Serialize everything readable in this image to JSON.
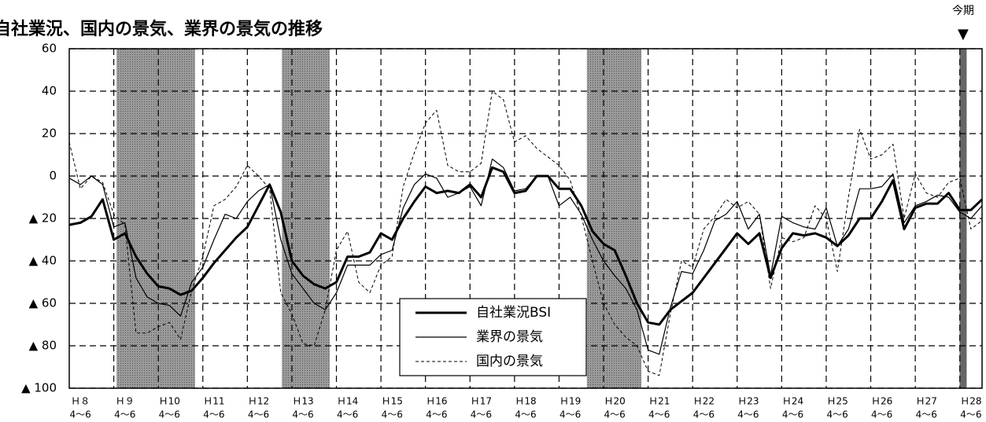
{
  "chart_data": {
    "type": "line",
    "title": "自社業況、国内の景気、業界の景気の推移",
    "xlim": [
      0,
      82
    ],
    "xticks": [
      {
        "value": 1,
        "label": "Ｈ８"
      },
      {
        "value": 5,
        "label": "Ｈ９"
      },
      {
        "value": 9,
        "label": "Ｈ10"
      },
      {
        "value": 13,
        "label": "Ｈ11"
      },
      {
        "value": 17,
        "label": "Ｈ12"
      },
      {
        "value": 21,
        "label": "Ｈ13"
      },
      {
        "value": 25,
        "label": "Ｈ14"
      },
      {
        "value": 29,
        "label": "Ｈ15"
      },
      {
        "value": 33,
        "label": "Ｈ16"
      },
      {
        "value": 37,
        "label": "Ｈ17"
      },
      {
        "value": 41,
        "label": "Ｈ18"
      },
      {
        "value": 45,
        "label": "Ｈ19"
      },
      {
        "value": 49,
        "label": "Ｈ20"
      },
      {
        "value": 53,
        "label": "Ｈ21"
      },
      {
        "value": 57,
        "label": "Ｈ22"
      },
      {
        "value": 61,
        "label": "Ｈ23"
      },
      {
        "value": 65,
        "label": "Ｈ24"
      },
      {
        "value": 69,
        "label": "Ｈ25"
      },
      {
        "value": 73,
        "label": "Ｈ26"
      },
      {
        "value": 77,
        "label": "Ｈ27"
      },
      {
        "value": 81,
        "label": "Ｈ28"
      }
    ],
    "xtick_period": "4～6",
    "x_grid": [
      4,
      8,
      12,
      16,
      20,
      24,
      28,
      32,
      36,
      40,
      44,
      48,
      52,
      56,
      60,
      64,
      68,
      72,
      76,
      80
    ],
    "ylim": [
      -100,
      60
    ],
    "yticks": [
      60,
      40,
      20,
      0,
      {
        "value": -20,
        "label": "▲ 20"
      },
      {
        "value": -40,
        "label": "▲ 40"
      },
      {
        "value": -60,
        "label": "▲ 60"
      },
      {
        "value": -80,
        "label": "▲ 80"
      },
      {
        "value": -100,
        "label": "▲ 100"
      }
    ],
    "grid": true,
    "shaded_ranges": [
      [
        4.25,
        11.3
      ],
      [
        19.1,
        23.4
      ],
      [
        46.5,
        51.4
      ]
    ],
    "shade_color": "#9a9a9a",
    "current_period": {
      "label": "今期",
      "marker": "▼",
      "x": 80.3,
      "color": "#666666"
    },
    "legend": "lower center",
    "series": [
      {
        "name": "自社業況BSI",
        "color": "#000000",
        "width": 3,
        "dash": "none",
        "values": [
          -23,
          -22,
          -19,
          -11,
          -30,
          -27,
          -38,
          -46,
          -52,
          -53,
          -56,
          -54,
          -48,
          -41,
          -35,
          -29,
          -24,
          -14,
          -4,
          -17,
          -40,
          -47,
          -51,
          -53,
          -50,
          -38,
          -38,
          -36,
          -27,
          -30,
          -20,
          -12,
          -5,
          -8,
          -7,
          -8,
          -4,
          -10,
          4,
          2,
          -8,
          -7,
          0,
          0,
          -6,
          -6,
          -14,
          -26,
          -32,
          -35,
          -47,
          -60,
          -69,
          -70,
          -63,
          -59,
          -55,
          -48,
          -41,
          -34,
          -27,
          -32,
          -27,
          -48,
          -34,
          -27,
          -28,
          -27,
          -29,
          -33,
          -28,
          -20,
          -20,
          -12,
          -2,
          -25,
          -15,
          -13,
          -13,
          -8,
          -16,
          -16,
          -11
        ]
      },
      {
        "name": "業界の景気",
        "color": "#000000",
        "width": 1.2,
        "dash": "none",
        "values": [
          -1,
          -4,
          0,
          -4,
          -24,
          -22,
          -48,
          -57,
          -60,
          -61,
          -66,
          -50,
          -43,
          -30,
          -18,
          -20,
          -12,
          -7,
          -4,
          -30,
          -46,
          -53,
          -60,
          -63,
          -55,
          -42,
          -42,
          -42,
          -37,
          -35,
          -15,
          -4,
          1,
          -1,
          -10,
          -8,
          -5,
          -14,
          8,
          4,
          -7,
          -6,
          0,
          0,
          -14,
          -10,
          -18,
          -30,
          -40,
          -47,
          -53,
          -63,
          -82,
          -84,
          -62,
          -45,
          -46,
          -35,
          -21,
          -18,
          -12,
          -25,
          -18,
          -47,
          -19,
          -22,
          -24,
          -25,
          -15,
          -33,
          -25,
          -6,
          -6,
          -5,
          1,
          -22,
          -14,
          -12,
          -9,
          -10,
          -17,
          -20,
          -14
        ]
      },
      {
        "name": "国内の景気",
        "color": "#000000",
        "width": 1,
        "dash": "4 3",
        "values": [
          16,
          -6,
          0,
          -3,
          -18,
          -23,
          -74,
          -74,
          -71,
          -69,
          -77,
          -54,
          -38,
          -14,
          -11,
          -5,
          5,
          0,
          -6,
          -55,
          -65,
          -79,
          -80,
          -63,
          -35,
          -26,
          -50,
          -55,
          -42,
          -38,
          -5,
          11,
          25,
          31,
          5,
          2,
          2,
          6,
          40,
          36,
          16,
          19,
          13,
          9,
          5,
          -2,
          -19,
          -40,
          -60,
          -70,
          -76,
          -80,
          -92,
          -94,
          -65,
          -40,
          -43,
          -25,
          -19,
          -11,
          -15,
          -12,
          -18,
          -53,
          -29,
          -31,
          -29,
          -14,
          -20,
          -45,
          -10,
          22,
          8,
          10,
          15,
          -20,
          1,
          -8,
          -10,
          -3,
          -1,
          -25,
          -21
        ]
      }
    ]
  }
}
